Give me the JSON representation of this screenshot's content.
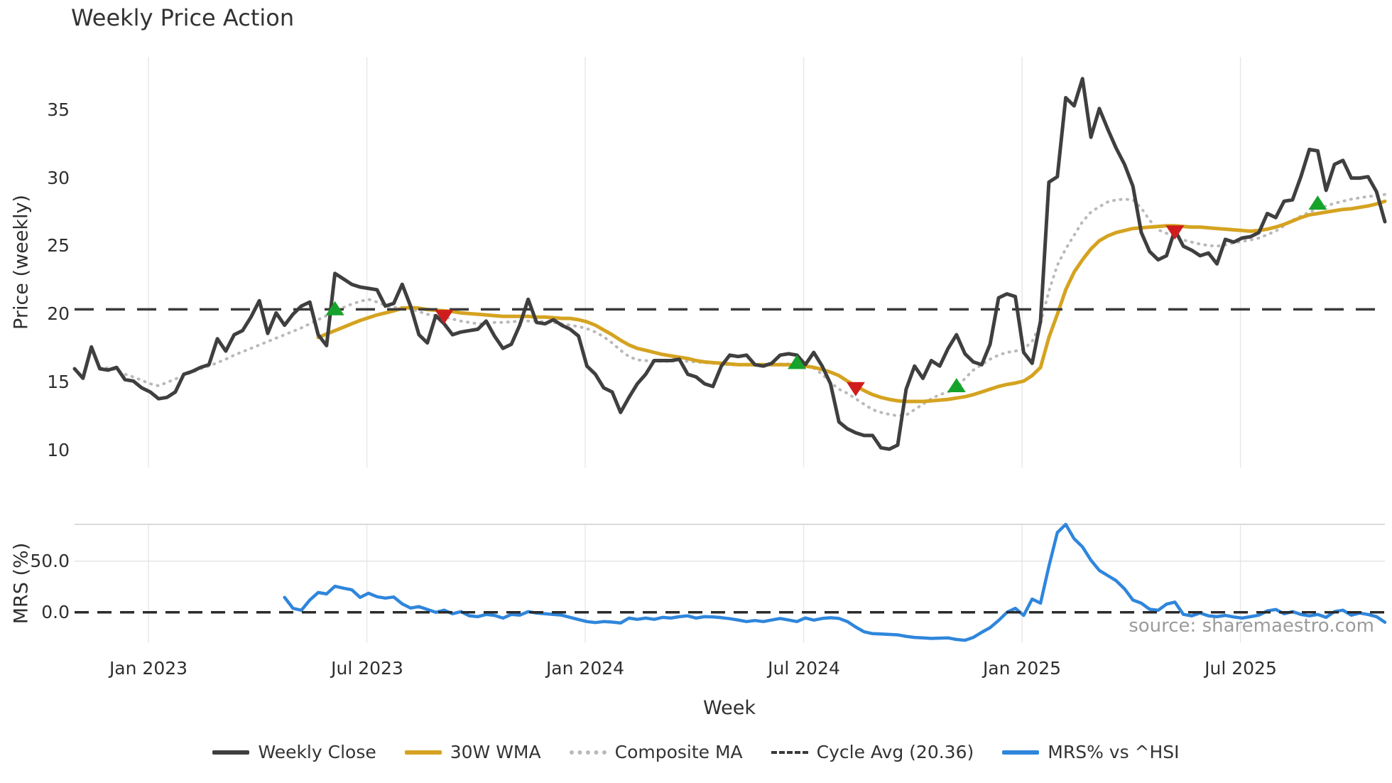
{
  "source_text": "source: sharemaestro.com",
  "colors": {
    "background": "#ffffff",
    "title_text": "#333333",
    "tick_text": "#2f2f2f",
    "source_text": "#9b9b9b",
    "grid": "#e9e9e9",
    "panel_border": "#cfcfcf",
    "grid_50": "#e4e4e4"
  },
  "chart_data": {
    "type": "line",
    "title": "Weekly Price Action",
    "xlabel": "Week",
    "x_unit": "week_index",
    "n_weeks": 157,
    "x_tick_positions": [
      8.8,
      34.8,
      60.8,
      86.8,
      112.8,
      138.8
    ],
    "x_tick_labels": [
      "Jan 2023",
      "Jul 2023",
      "Jan 2024",
      "Jul 2024",
      "Jan 2025",
      "Jul 2025"
    ],
    "legend": [
      {
        "label": "Weekly Close",
        "color": "#3f3f3f",
        "style": "solid"
      },
      {
        "label": "30W WMA",
        "color": "#d5a321",
        "style": "solid"
      },
      {
        "label": "Composite MA",
        "color": "#b9b9b9",
        "style": "dotted"
      },
      {
        "label": "Cycle Avg (20.36)",
        "color": "#3a3a3a",
        "style": "dashed"
      },
      {
        "label": "MRS% vs ^HSI",
        "color": "#2f86dc",
        "style": "solid"
      }
    ],
    "marker_colors": {
      "buy": "#16a32b",
      "sell": "#cf1d1d"
    },
    "panels": [
      {
        "name": "price",
        "ylabel": "Price (weekly)",
        "ylim": [
          8.75,
          38.9
        ],
        "yticks": [
          10,
          15,
          20,
          25,
          30,
          35
        ],
        "ytick_labels": [
          "10",
          "15",
          "20",
          "25",
          "30",
          "35"
        ],
        "grid": "vertical",
        "series": [
          {
            "name": "Composite MA",
            "kind": "line",
            "style": "dotted",
            "color": "#b9b9b9",
            "width": 4,
            "start_index": 3,
            "values": [
              16.1,
              16.05,
              15.9,
              15.6,
              15.4,
              15.15,
              14.9,
              14.75,
              15.0,
              15.25,
              15.5,
              15.75,
              16.0,
              16.2,
              16.45,
              16.7,
              17.0,
              17.25,
              17.5,
              17.75,
              18.0,
              18.25,
              18.5,
              18.75,
              19.0,
              19.3,
              19.6,
              19.9,
              20.2,
              20.5,
              20.75,
              20.95,
              21.1,
              20.9,
              20.65,
              20.5,
              20.5,
              20.4,
              20.2,
              20.0,
              19.9,
              19.8,
              19.65,
              19.5,
              19.4,
              19.3,
              19.3,
              19.4,
              19.4,
              19.45,
              19.5,
              19.5,
              19.5,
              19.45,
              19.4,
              19.3,
              19.2,
              19.1,
              18.95,
              18.7,
              18.35,
              17.9,
              17.35,
              16.9,
              16.65,
              16.6,
              16.55,
              16.55,
              16.55,
              16.6,
              16.55,
              16.5,
              16.45,
              16.4,
              16.35,
              16.3,
              16.3,
              16.3,
              16.3,
              16.3,
              16.35,
              16.35,
              16.35,
              16.3,
              16.25,
              16.05,
              15.6,
              15.0,
              14.5,
              14.2,
              13.8,
              13.4,
              13.0,
              12.8,
              12.65,
              12.55,
              12.6,
              13.0,
              13.4,
              13.8,
              14.1,
              14.3,
              14.5,
              15.3,
              15.9,
              16.3,
              16.7,
              17.0,
              17.2,
              17.3,
              17.45,
              18.0,
              19.3,
              21.7,
              23.6,
              24.8,
              25.8,
              26.8,
              27.5,
              27.9,
              28.25,
              28.4,
              28.45,
              28.4,
              27.8,
              26.9,
              26.2,
              25.95,
              25.7,
              25.45,
              25.3,
              25.15,
              25.05,
              25.0,
              25.1,
              25.25,
              25.35,
              25.45,
              25.6,
              25.85,
              26.1,
              26.5,
              26.9,
              27.2,
              27.5,
              27.75,
              27.95,
              28.15,
              28.3,
              28.45,
              28.55,
              28.65,
              28.7,
              28.8
            ]
          },
          {
            "name": "30W WMA",
            "kind": "line",
            "style": "solid",
            "color": "#d5a321",
            "width": 5,
            "start_index": 29,
            "values": [
              18.3,
              18.55,
              18.8,
              19.05,
              19.3,
              19.55,
              19.75,
              19.95,
              20.1,
              20.25,
              20.45,
              20.5,
              20.45,
              20.35,
              20.3,
              20.25,
              20.2,
              20.1,
              20.05,
              20.0,
              19.95,
              19.9,
              19.85,
              19.85,
              19.85,
              19.85,
              19.8,
              19.8,
              19.75,
              19.7,
              19.7,
              19.6,
              19.45,
              19.2,
              18.85,
              18.5,
              18.1,
              17.75,
              17.5,
              17.35,
              17.2,
              17.05,
              16.95,
              16.85,
              16.75,
              16.6,
              16.5,
              16.45,
              16.4,
              16.35,
              16.3,
              16.3,
              16.3,
              16.3,
              16.3,
              16.3,
              16.3,
              16.25,
              16.2,
              16.1,
              15.95,
              15.75,
              15.5,
              15.1,
              14.75,
              14.4,
              14.1,
              13.9,
              13.75,
              13.65,
              13.6,
              13.6,
              13.6,
              13.65,
              13.7,
              13.75,
              13.85,
              13.95,
              14.1,
              14.3,
              14.5,
              14.7,
              14.85,
              14.95,
              15.1,
              15.5,
              16.1,
              18.3,
              20.0,
              21.8,
              23.1,
              24.0,
              24.8,
              25.4,
              25.75,
              26.0,
              26.15,
              26.3,
              26.35,
              26.4,
              26.45,
              26.5,
              26.5,
              26.45,
              26.4,
              26.4,
              26.35,
              26.3,
              26.25,
              26.2,
              26.15,
              26.1,
              26.15,
              26.25,
              26.4,
              26.6,
              26.85,
              27.1,
              27.3,
              27.4,
              27.5,
              27.6,
              27.7,
              27.75,
              27.85,
              27.95,
              28.1,
              28.3
            ]
          },
          {
            "name": "Weekly Close",
            "kind": "line",
            "style": "solid",
            "color": "#3f3f3f",
            "width": 5,
            "start_index": 0,
            "values": [
              16.0,
              15.3,
              17.6,
              16.0,
              15.9,
              16.1,
              15.2,
              15.1,
              14.6,
              14.3,
              13.8,
              13.9,
              14.3,
              15.6,
              15.8,
              16.1,
              16.3,
              18.2,
              17.3,
              18.5,
              18.8,
              19.8,
              21.0,
              18.6,
              20.1,
              19.2,
              20.0,
              20.6,
              20.9,
              18.5,
              17.7,
              23.0,
              22.6,
              22.2,
              22.0,
              21.9,
              21.8,
              20.6,
              20.8,
              22.2,
              20.6,
              18.5,
              17.9,
              19.9,
              19.3,
              18.5,
              18.7,
              18.8,
              18.9,
              19.5,
              18.4,
              17.5,
              17.8,
              19.2,
              21.1,
              19.4,
              19.3,
              19.6,
              19.2,
              18.9,
              18.4,
              16.2,
              15.6,
              14.6,
              14.3,
              12.8,
              13.9,
              14.9,
              15.6,
              16.6,
              16.6,
              16.6,
              16.7,
              15.6,
              15.4,
              14.9,
              14.7,
              16.2,
              17.0,
              16.9,
              17.0,
              16.3,
              16.2,
              16.4,
              17.0,
              17.1,
              17.0,
              16.3,
              17.2,
              16.2,
              14.9,
              12.1,
              11.6,
              11.3,
              11.1,
              11.1,
              10.2,
              10.1,
              10.4,
              14.5,
              16.2,
              15.3,
              16.6,
              16.2,
              17.5,
              18.5,
              17.1,
              16.5,
              16.3,
              17.8,
              21.2,
              21.5,
              21.3,
              17.2,
              16.4,
              19.5,
              29.7,
              30.1,
              35.9,
              35.3,
              37.3,
              33.0,
              35.1,
              33.6,
              32.2,
              31.0,
              29.4,
              26.0,
              24.6,
              24.0,
              24.3,
              26.2,
              25.0,
              24.7,
              24.3,
              24.5,
              23.7,
              25.5,
              25.3,
              25.6,
              25.7,
              26.0,
              27.4,
              27.1,
              28.3,
              28.4,
              30.1,
              32.1,
              32.0,
              29.1,
              31.0,
              31.3,
              30.0,
              30.0,
              30.1,
              29.0,
              26.8
            ]
          },
          {
            "name": "Cycle Avg (20.36)",
            "kind": "hline",
            "style": "dashed",
            "color": "#3a3a3a",
            "width": 3.5,
            "value": 20.36
          }
        ],
        "markers": [
          {
            "index": 31,
            "value": 20.45,
            "signal": "buy"
          },
          {
            "index": 44,
            "value": 19.8,
            "signal": "sell"
          },
          {
            "index": 86,
            "value": 16.5,
            "signal": "buy"
          },
          {
            "index": 93,
            "value": 14.5,
            "signal": "sell"
          },
          {
            "index": 105,
            "value": 14.8,
            "signal": "buy"
          },
          {
            "index": 131,
            "value": 26.0,
            "signal": "sell"
          },
          {
            "index": 148,
            "value": 28.2,
            "signal": "buy"
          }
        ]
      },
      {
        "name": "mrs",
        "ylabel": "MRS (%)",
        "ylim": [
          -30,
          86
        ],
        "yticks": [
          0,
          50
        ],
        "ytick_labels": [
          "0.0",
          "50.0"
        ],
        "grid": "vertical",
        "top_border": true,
        "series": [
          {
            "name": "MRS% vs ^HSI",
            "kind": "line",
            "style": "solid",
            "color": "#2f86dc",
            "width": 4.5,
            "start_index": 25,
            "values": [
              14.6,
              4.0,
              2.0,
              12.0,
              19.4,
              18.0,
              25.5,
              23.6,
              22.0,
              14.6,
              18.7,
              15.3,
              13.9,
              15.0,
              8.3,
              4.2,
              5.6,
              2.8,
              0.0,
              2.1,
              -1.4,
              0.7,
              -3.5,
              -4.2,
              -2.1,
              -3.0,
              -5.6,
              -2.1,
              -2.8,
              0.7,
              -0.7,
              -1.4,
              -2.0,
              -2.8,
              -4.9,
              -7.0,
              -9.0,
              -10.0,
              -9.0,
              -9.5,
              -10.4,
              -5.6,
              -6.9,
              -5.6,
              -6.9,
              -4.9,
              -5.6,
              -4.2,
              -3.5,
              -5.6,
              -4.2,
              -4.5,
              -5.2,
              -6.2,
              -7.5,
              -9.0,
              -8.0,
              -9.0,
              -7.5,
              -6.0,
              -7.5,
              -9.0,
              -5.5,
              -7.6,
              -6.0,
              -5.3,
              -6.0,
              -9.0,
              -14.4,
              -19.0,
              -20.8,
              -21.2,
              -21.6,
              -22.0,
              -23.5,
              -24.5,
              -25.0,
              -25.5,
              -25.2,
              -25.0,
              -26.5,
              -27.3,
              -24.5,
              -19.5,
              -15.0,
              -8.0,
              0.0,
              4.0,
              -3.0,
              13.0,
              9.0,
              45.0,
              78.0,
              86.0,
              72.0,
              64.0,
              51.0,
              41.0,
              36.0,
              31.0,
              23.0,
              12.0,
              9.0,
              3.0,
              2.0,
              8.0,
              10.0,
              -2.0,
              -3.5,
              -0.7,
              -3.5,
              -4.2,
              -3.0,
              -4.5,
              -5.6,
              -4.2,
              -2.8,
              1.4,
              2.8,
              -1.4,
              0.7,
              -2.1,
              -3.5,
              -2.1,
              -4.9,
              0.7,
              2.1,
              -2.8,
              -0.7,
              -2.1,
              -4.2,
              -9.7
            ]
          },
          {
            "name": "Zero Line",
            "kind": "hline",
            "style": "dashed",
            "color": "#2b2b2b",
            "width": 3.5,
            "value": 0
          }
        ]
      }
    ]
  }
}
